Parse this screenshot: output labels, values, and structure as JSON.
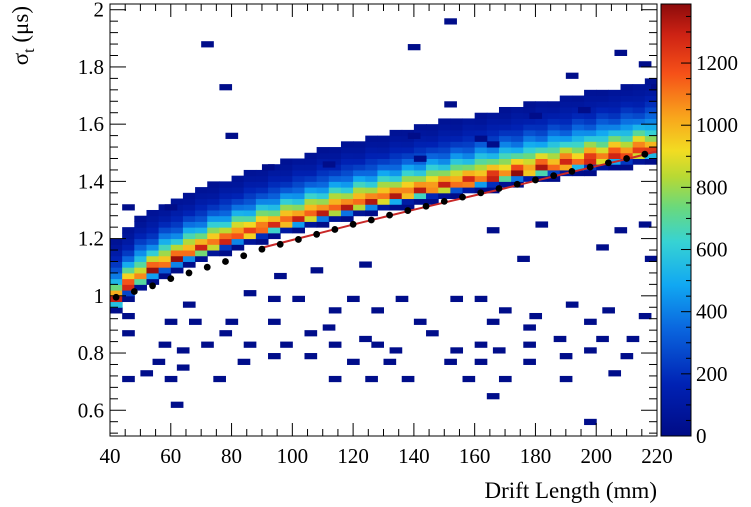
{
  "chart_data": {
    "type": "heatmap",
    "xlabel": "Drift Length (mm)",
    "ylabel_main": "σ",
    "ylabel_sub": "t",
    "ylabel_unit": " (μs)",
    "xlim": [
      40,
      220
    ],
    "ylim": [
      0.51,
      2.02
    ],
    "x_ticks": [
      40,
      60,
      80,
      100,
      120,
      140,
      160,
      180,
      200,
      220
    ],
    "x_tick_labels": [
      "40",
      "60",
      "80",
      "100",
      "120",
      "140",
      "160",
      "180",
      "200",
      "220"
    ],
    "y_ticks": [
      0.6,
      0.8,
      1.0,
      1.2,
      1.4,
      1.6,
      1.8,
      2.0
    ],
    "y_tick_labels": [
      "0.6",
      "0.8",
      "1",
      "1.2",
      "1.4",
      "1.6",
      "1.8",
      "2"
    ],
    "colorbar": {
      "range": [
        0,
        1390
      ],
      "ticks": [
        0,
        200,
        400,
        600,
        800,
        1000,
        1200
      ],
      "tick_labels": [
        "0",
        "200",
        "400",
        "600",
        "800",
        "1000",
        "1200"
      ]
    },
    "band": {
      "bin_width_mm": 4,
      "bin_height_us": 0.02,
      "peak_counts": 1390,
      "ridge_curve": "sqrt"
    },
    "profile_points": {
      "x": [
        42,
        48,
        54,
        60,
        66,
        72,
        78,
        84,
        90,
        96,
        102,
        108,
        114,
        120,
        126,
        132,
        138,
        144,
        150,
        156,
        162,
        168,
        174,
        180,
        186,
        192,
        198,
        204,
        210,
        216
      ],
      "y": [
        0.995,
        1.015,
        1.035,
        1.06,
        1.08,
        1.1,
        1.12,
        1.14,
        1.163,
        1.18,
        1.197,
        1.215,
        1.232,
        1.25,
        1.265,
        1.282,
        1.298,
        1.313,
        1.33,
        1.345,
        1.36,
        1.375,
        1.39,
        1.405,
        1.42,
        1.435,
        1.45,
        1.465,
        1.48,
        1.495
      ]
    },
    "fit": {
      "color": "#c82828",
      "x_range": [
        90,
        220
      ],
      "x": [
        90,
        100,
        110,
        120,
        130,
        140,
        150,
        160,
        170,
        180,
        190,
        200,
        210,
        220
      ],
      "y": [
        1.168,
        1.195,
        1.222,
        1.249,
        1.275,
        1.301,
        1.326,
        1.351,
        1.376,
        1.402,
        1.428,
        1.453,
        1.478,
        1.505
      ]
    },
    "outliers": [
      [
        70,
        1.87
      ],
      [
        76,
        1.72
      ],
      [
        150,
        1.95
      ],
      [
        138,
        1.86
      ],
      [
        214,
        1.8
      ],
      [
        206,
        1.84
      ],
      [
        190,
        1.76
      ],
      [
        150,
        1.66
      ],
      [
        218,
        1.72
      ],
      [
        178,
        1.62
      ],
      [
        194,
        1.64
      ],
      [
        160,
        1.54
      ],
      [
        138,
        1.55
      ],
      [
        164,
        1.52
      ],
      [
        78,
        1.55
      ],
      [
        110,
        1.45
      ],
      [
        140,
        1.47
      ],
      [
        90,
        1.44
      ],
      [
        44,
        1.3
      ],
      [
        58,
        1.3
      ],
      [
        164,
        1.22
      ],
      [
        206,
        1.22
      ],
      [
        180,
        1.24
      ],
      [
        214,
        1.24
      ],
      [
        200,
        1.16
      ],
      [
        174,
        1.12
      ],
      [
        216,
        1.12
      ],
      [
        84,
        1.0
      ],
      [
        92,
        0.98
      ],
      [
        100,
        0.98
      ],
      [
        118,
        0.98
      ],
      [
        134,
        0.98
      ],
      [
        152,
        0.98
      ],
      [
        160,
        0.98
      ],
      [
        64,
        0.96
      ],
      [
        112,
        0.94
      ],
      [
        126,
        0.94
      ],
      [
        190,
        0.96
      ],
      [
        202,
        0.94
      ],
      [
        44,
        0.92
      ],
      [
        58,
        0.9
      ],
      [
        66,
        0.9
      ],
      [
        78,
        0.9
      ],
      [
        92,
        0.9
      ],
      [
        110,
        0.88
      ],
      [
        140,
        0.9
      ],
      [
        164,
        0.9
      ],
      [
        176,
        0.88
      ],
      [
        196,
        0.9
      ],
      [
        214,
        0.92
      ],
      [
        168,
        0.94
      ],
      [
        178,
        0.92
      ],
      [
        76,
        0.86
      ],
      [
        144,
        0.86
      ],
      [
        104,
        0.86
      ],
      [
        122,
        0.84
      ],
      [
        160,
        0.82
      ],
      [
        186,
        0.84
      ],
      [
        200,
        0.84
      ],
      [
        210,
        0.84
      ],
      [
        44,
        0.86
      ],
      [
        56,
        0.82
      ],
      [
        62,
        0.8
      ],
      [
        70,
        0.82
      ],
      [
        84,
        0.82
      ],
      [
        96,
        0.82
      ],
      [
        112,
        0.82
      ],
      [
        126,
        0.82
      ],
      [
        132,
        0.8
      ],
      [
        152,
        0.8
      ],
      [
        166,
        0.8
      ],
      [
        176,
        0.82
      ],
      [
        196,
        0.8
      ],
      [
        54,
        0.76
      ],
      [
        62,
        0.74
      ],
      [
        82,
        0.76
      ],
      [
        92,
        0.78
      ],
      [
        104,
        0.78
      ],
      [
        118,
        0.76
      ],
      [
        130,
        0.76
      ],
      [
        150,
        0.76
      ],
      [
        160,
        0.76
      ],
      [
        176,
        0.76
      ],
      [
        188,
        0.78
      ],
      [
        208,
        0.78
      ],
      [
        50,
        0.72
      ],
      [
        58,
        0.7
      ],
      [
        74,
        0.7
      ],
      [
        112,
        0.7
      ],
      [
        124,
        0.7
      ],
      [
        136,
        0.7
      ],
      [
        156,
        0.7
      ],
      [
        168,
        0.7
      ],
      [
        188,
        0.7
      ],
      [
        204,
        0.72
      ],
      [
        44,
        0.7
      ],
      [
        164,
        0.64
      ],
      [
        60,
        0.61
      ],
      [
        196,
        0.55
      ],
      [
        94,
        1.06
      ],
      [
        106,
        1.08
      ],
      [
        122,
        1.1
      ]
    ]
  }
}
